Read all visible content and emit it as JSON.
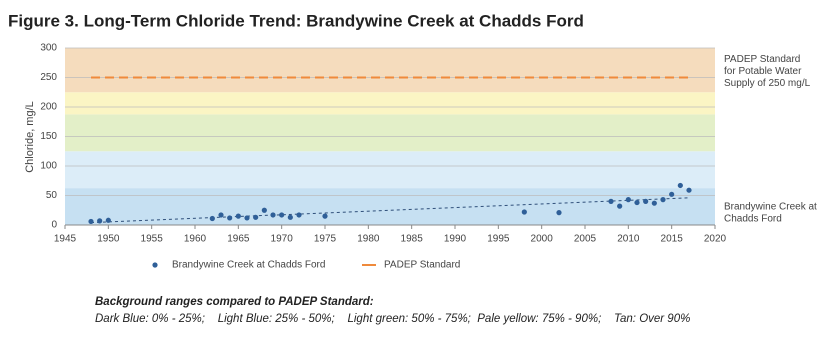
{
  "chart_data": {
    "type": "scatter",
    "title": "Figure 3. Long-Term Chloride Trend: Brandywine Creek at Chadds Ford",
    "y_label": "Chloride, mg/L",
    "xlim": [
      1945,
      2020
    ],
    "xticks": [
      1945,
      1950,
      1955,
      1960,
      1965,
      1970,
      1975,
      1980,
      1985,
      1990,
      1995,
      2000,
      2005,
      2010,
      2015,
      2020
    ],
    "ylim": [
      0,
      300
    ],
    "yticks": [
      0,
      50,
      100,
      150,
      200,
      250,
      300
    ],
    "grid": true,
    "bands": [
      {
        "from": 0,
        "to": 62.5,
        "color": "#c6e0f2"
      },
      {
        "from": 62.5,
        "to": 125,
        "color": "#dcedf8"
      },
      {
        "from": 125,
        "to": 187.5,
        "color": "#e3efc8"
      },
      {
        "from": 187.5,
        "to": 225,
        "color": "#fbf5c4"
      },
      {
        "from": 225,
        "to": 300,
        "color": "#f5dcbd"
      }
    ],
    "series": [
      {
        "name": "Brandywine Creek at Chadds Ford",
        "color": "#2f5f98",
        "style": "dots",
        "x": [
          1948,
          1949,
          1950,
          1962,
          1963,
          1964,
          1965,
          1966,
          1967,
          1968,
          1969,
          1970,
          1971,
          1972,
          1975,
          1998,
          2002,
          2008,
          2009,
          2010,
          2011,
          2012,
          2013,
          2014,
          2015,
          2016,
          2017
        ],
        "values": [
          6,
          7,
          8,
          11,
          17,
          12,
          15,
          12,
          13,
          25,
          17,
          17,
          13,
          17,
          15,
          22,
          21,
          40,
          32,
          43,
          38,
          40,
          37,
          43,
          52,
          67,
          59
        ]
      },
      {
        "name": "PADEP Standard",
        "color": "#ef8a3c",
        "style": "dashed",
        "x": [
          1948,
          2017
        ],
        "values": [
          250,
          250
        ]
      }
    ],
    "trendline": {
      "color": "#2f4f7a",
      "x": [
        1948,
        2017
      ],
      "values": [
        4,
        46
      ]
    },
    "annotations": [
      {
        "lines": [
          "PADEP Standard",
          "for Potable Water",
          "Supply of 250 mg/L"
        ],
        "at": 250
      },
      {
        "lines": [
          "Brandywine Creek at",
          "Chadds Ford"
        ],
        "at": 5
      }
    ],
    "footnote": {
      "heading": "Background ranges compared to PADEP Standard:",
      "text": "Dark Blue: 0% - 25%;    Light Blue: 25% - 50%;    Light green: 50% - 75%;  Pale yellow: 75% - 90%;    Tan: Over 90%"
    }
  }
}
